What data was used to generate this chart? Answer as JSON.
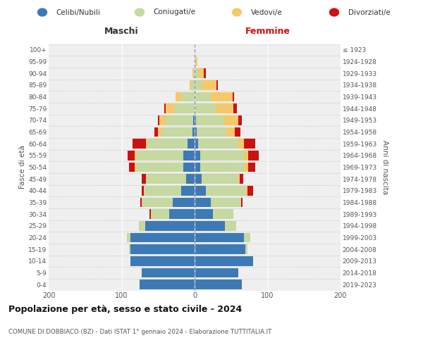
{
  "age_groups": [
    "0-4",
    "5-9",
    "10-14",
    "15-19",
    "20-24",
    "25-29",
    "30-34",
    "35-39",
    "40-44",
    "45-49",
    "50-54",
    "55-59",
    "60-64",
    "65-69",
    "70-74",
    "75-79",
    "80-84",
    "85-89",
    "90-94",
    "95-99",
    "100+"
  ],
  "birth_years": [
    "2019-2023",
    "2014-2018",
    "2009-2013",
    "2004-2008",
    "1999-2003",
    "1994-1998",
    "1989-1993",
    "1984-1988",
    "1979-1983",
    "1974-1978",
    "1969-1973",
    "1964-1968",
    "1959-1963",
    "1954-1958",
    "1949-1953",
    "1944-1948",
    "1939-1943",
    "1934-1938",
    "1929-1933",
    "1924-1928",
    "≤ 1923"
  ],
  "males": {
    "celibi": [
      75,
      72,
      88,
      88,
      88,
      68,
      35,
      30,
      18,
      12,
      15,
      15,
      10,
      3,
      2,
      0,
      0,
      0,
      0,
      0,
      0
    ],
    "coniugati": [
      0,
      0,
      0,
      2,
      5,
      8,
      25,
      42,
      52,
      55,
      65,
      65,
      55,
      42,
      38,
      28,
      18,
      5,
      2,
      0,
      0
    ],
    "vedovi": [
      0,
      0,
      0,
      0,
      0,
      0,
      0,
      0,
      0,
      0,
      2,
      2,
      2,
      5,
      8,
      12,
      8,
      2,
      1,
      0,
      0
    ],
    "divorziati": [
      0,
      0,
      0,
      0,
      0,
      0,
      2,
      2,
      2,
      5,
      8,
      10,
      18,
      5,
      2,
      2,
      0,
      0,
      0,
      0,
      0
    ]
  },
  "females": {
    "nubili": [
      65,
      60,
      80,
      70,
      68,
      42,
      25,
      22,
      15,
      10,
      8,
      8,
      5,
      3,
      2,
      0,
      0,
      0,
      0,
      0,
      0
    ],
    "coniugate": [
      0,
      0,
      0,
      2,
      8,
      15,
      28,
      42,
      55,
      50,
      60,
      60,
      55,
      40,
      38,
      28,
      22,
      10,
      5,
      2,
      0
    ],
    "vedove": [
      0,
      0,
      0,
      0,
      0,
      0,
      0,
      0,
      2,
      2,
      5,
      5,
      8,
      12,
      20,
      25,
      30,
      20,
      8,
      2,
      0
    ],
    "divorziate": [
      0,
      0,
      0,
      0,
      0,
      0,
      0,
      2,
      8,
      5,
      10,
      15,
      15,
      8,
      5,
      5,
      2,
      2,
      2,
      0,
      0
    ]
  },
  "colors": {
    "celibi": "#3d7ab5",
    "coniugati": "#c5d9a0",
    "vedovi": "#f5c96a",
    "divorziati": "#cc1111"
  },
  "xlim": 200,
  "title": "Popolazione per età, sesso e stato civile - 2024",
  "subtitle": "COMUNE DI DOBBIACO (BZ) - Dati ISTAT 1° gennaio 2024 - Elaborazione TUTTITALIA.IT",
  "ylabel_left": "Fasce di età",
  "ylabel_right": "Anni di nascita",
  "header_left": "Maschi",
  "header_right": "Femmine",
  "bg_color": "#efefef",
  "legend_labels": [
    "Celibi/Nubili",
    "Coniugati/e",
    "Vedovi/e",
    "Divorziati/e"
  ]
}
